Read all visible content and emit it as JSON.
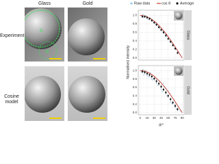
{
  "columns": [
    "Glass",
    "Gold"
  ],
  "rows": [
    "Experiment",
    "Cosine model"
  ],
  "circle_labels": [
    "S",
    "M"
  ],
  "chart_data": [
    {
      "type": "scatter",
      "panel_label": "Glass",
      "ylabel": "Normalised intensity",
      "xlim": [
        -4,
        94
      ],
      "ylim": [
        -0.05,
        1.12
      ],
      "xticks": [
        0,
        15,
        30,
        45,
        60,
        75,
        90
      ],
      "yticks": [
        {
          "value": 0,
          "label": "0.0"
        },
        0.2,
        0.4,
        0.6,
        0.8,
        {
          "value": 1,
          "label": "1.0"
        }
      ],
      "grid": true,
      "series": [
        {
          "name": "Raw data",
          "color": "#9cc9e8",
          "style": "points",
          "x": [
            3,
            8,
            12,
            18,
            22,
            27,
            33,
            38,
            42,
            48,
            52,
            57,
            63,
            68,
            72,
            77,
            82,
            86,
            6,
            15,
            25,
            35,
            45,
            55,
            65,
            75
          ],
          "values": [
            0.98,
            0.95,
            0.99,
            0.9,
            0.93,
            0.85,
            0.8,
            0.75,
            0.7,
            0.64,
            0.58,
            0.5,
            0.42,
            0.35,
            0.28,
            0.2,
            0.14,
            0.08,
            1.02,
            0.92,
            0.9,
            0.83,
            0.66,
            0.5,
            0.4,
            0.24
          ]
        },
        {
          "name": "cos θ",
          "color": "#c0392b",
          "style": "line",
          "x": [
            0,
            5,
            10,
            15,
            20,
            25,
            30,
            35,
            40,
            45,
            50,
            55,
            60,
            65,
            70,
            75,
            80,
            85,
            90
          ],
          "values": [
            1,
            0.996,
            0.985,
            0.966,
            0.94,
            0.906,
            0.866,
            0.819,
            0.766,
            0.707,
            0.643,
            0.574,
            0.5,
            0.423,
            0.342,
            0.259,
            0.174,
            0.087,
            0
          ]
        },
        {
          "name": "Average",
          "color": "#111111",
          "style": "errorpoints",
          "x": [
            5,
            10,
            15,
            20,
            25,
            30,
            35,
            40,
            45,
            50,
            55,
            60,
            65,
            70,
            75,
            80
          ],
          "values": [
            0.97,
            0.97,
            0.95,
            0.92,
            0.88,
            0.83,
            0.78,
            0.72,
            0.66,
            0.6,
            0.53,
            0.45,
            0.38,
            0.3,
            0.22,
            0.12
          ],
          "errors": [
            0.03,
            0.03,
            0.03,
            0.03,
            0.03,
            0.03,
            0.03,
            0.03,
            0.03,
            0.03,
            0.03,
            0.03,
            0.03,
            0.03,
            0.03,
            0.03
          ]
        }
      ]
    },
    {
      "type": "scatter",
      "panel_label": "Gold",
      "xlabel": "θ/°",
      "xlim": [
        -4,
        94
      ],
      "ylim": [
        -0.05,
        1.12
      ],
      "xticks": [
        0,
        15,
        30,
        45,
        60,
        75,
        90
      ],
      "yticks": [
        {
          "value": 0,
          "label": "0.0"
        },
        0.2,
        0.4,
        0.6,
        0.8,
        {
          "value": 1,
          "label": "1.0"
        }
      ],
      "grid": true,
      "series": [
        {
          "name": "Raw data",
          "color": "#9cc9e8",
          "style": "points",
          "x": [
            3,
            8,
            12,
            18,
            22,
            27,
            33,
            38,
            42,
            48,
            52,
            57,
            63,
            68,
            72,
            77,
            82,
            86,
            6,
            15,
            25,
            35,
            45,
            55,
            65,
            75,
            50,
            60
          ],
          "values": [
            0.96,
            0.9,
            1.0,
            0.85,
            0.95,
            0.78,
            0.82,
            0.65,
            0.75,
            0.5,
            0.62,
            0.4,
            0.45,
            0.22,
            0.3,
            0.1,
            0.15,
            0.04,
            1.03,
            0.88,
            0.8,
            0.7,
            0.55,
            0.58,
            0.25,
            0.2,
            0.7,
            0.52
          ]
        },
        {
          "name": "cos θ",
          "color": "#c0392b",
          "style": "line",
          "x": [
            0,
            5,
            10,
            15,
            20,
            25,
            30,
            35,
            40,
            45,
            50,
            55,
            60,
            65,
            70,
            75,
            80,
            85,
            90
          ],
          "values": [
            1,
            0.996,
            0.985,
            0.966,
            0.94,
            0.906,
            0.866,
            0.819,
            0.766,
            0.707,
            0.643,
            0.574,
            0.5,
            0.423,
            0.342,
            0.259,
            0.174,
            0.087,
            0
          ]
        },
        {
          "name": "Average",
          "color": "#111111",
          "style": "errorpoints",
          "x": [
            5,
            10,
            15,
            20,
            25,
            30,
            35,
            40,
            45,
            50,
            55,
            60,
            65,
            70,
            75,
            80
          ],
          "values": [
            0.98,
            0.96,
            0.93,
            0.9,
            0.86,
            0.81,
            0.75,
            0.69,
            0.62,
            0.55,
            0.48,
            0.4,
            0.32,
            0.24,
            0.16,
            0.08
          ],
          "errors": [
            0.04,
            0.04,
            0.04,
            0.04,
            0.04,
            0.04,
            0.04,
            0.04,
            0.04,
            0.04,
            0.04,
            0.04,
            0.04,
            0.04,
            0.04,
            0.04
          ]
        }
      ]
    }
  ]
}
